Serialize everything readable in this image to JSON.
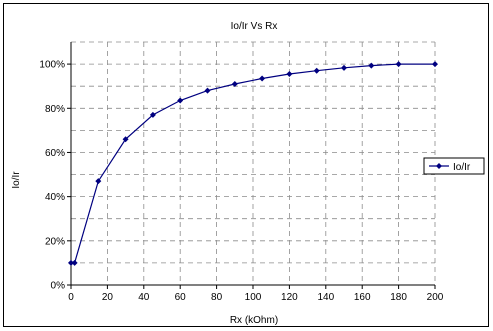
{
  "chart_data": {
    "type": "line",
    "title": "Io/Ir Vs Rx",
    "xlabel": "Rx (kOhm)",
    "ylabel": "Io/Ir",
    "xlim": [
      0,
      200
    ],
    "ylim": [
      0,
      1.1
    ],
    "x_ticks": [
      0,
      20,
      40,
      60,
      80,
      100,
      120,
      140,
      160,
      180,
      200
    ],
    "y_ticks": [
      {
        "value": 0.0,
        "label": "0%"
      },
      {
        "value": 0.2,
        "label": "20%"
      },
      {
        "value": 0.4,
        "label": "40%"
      },
      {
        "value": 0.6,
        "label": "60%"
      },
      {
        "value": 0.8,
        "label": "80%"
      },
      {
        "value": 1.0,
        "label": "100%"
      }
    ],
    "grid": true,
    "legend_position": "right",
    "series": [
      {
        "name": "Io/Ir",
        "color": "#000080",
        "marker": "diamond",
        "x": [
          0,
          2,
          15,
          30,
          45,
          60,
          75,
          90,
          105,
          120,
          135,
          150,
          165,
          180,
          200
        ],
        "y": [
          0.1,
          0.1,
          0.47,
          0.66,
          0.77,
          0.835,
          0.88,
          0.91,
          0.935,
          0.955,
          0.97,
          0.983,
          0.993,
          1.0,
          1.0
        ]
      }
    ]
  }
}
